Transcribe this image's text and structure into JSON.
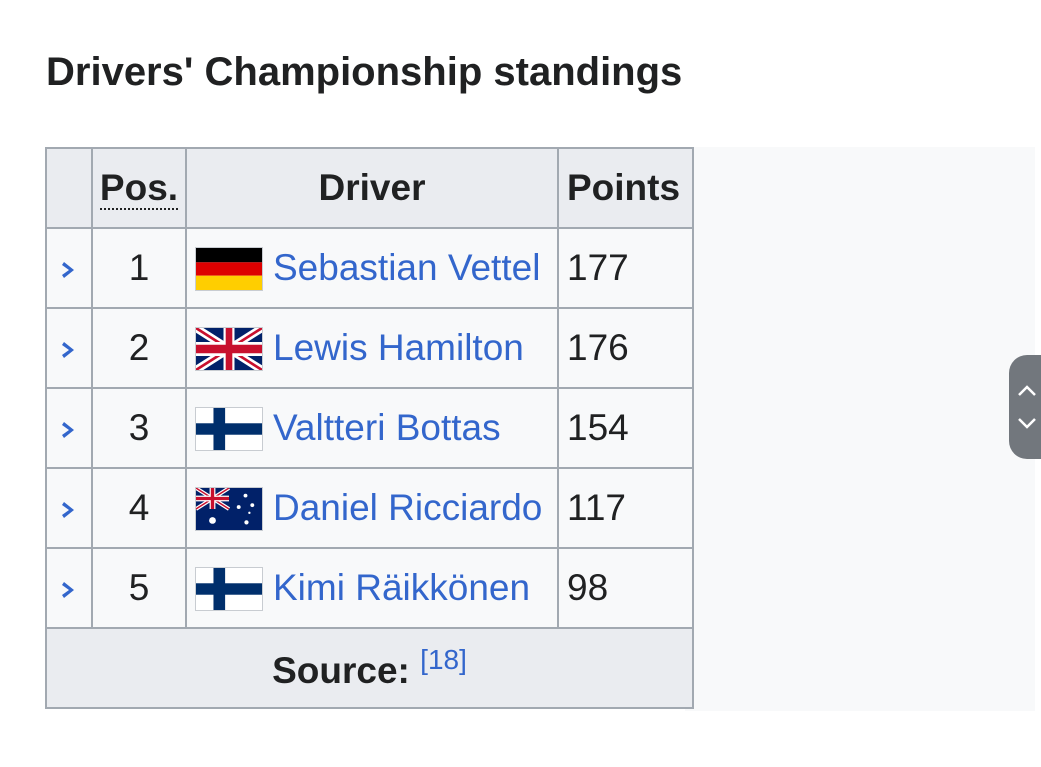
{
  "page": {
    "title": "Drivers' Championship standings"
  },
  "table": {
    "headers": {
      "pos": "Pos.",
      "driver": "Driver",
      "points": "Points"
    },
    "rows": [
      {
        "pos": "1",
        "driver": "Sebastian Vettel",
        "points": "177",
        "flag": "germany-flag-icon"
      },
      {
        "pos": "2",
        "driver": "Lewis Hamilton",
        "points": "176",
        "flag": "united-kingdom-flag-icon"
      },
      {
        "pos": "3",
        "driver": "Valtteri Bottas",
        "points": "154",
        "flag": "finland-flag-icon"
      },
      {
        "pos": "4",
        "driver": "Daniel Ricciardo",
        "points": "117",
        "flag": "australia-flag-icon"
      },
      {
        "pos": "5",
        "driver": "Kimi Räikkönen",
        "points": "98",
        "flag": "finland-flag-icon"
      }
    ],
    "source_label": "Source:",
    "source_ref": "[18]"
  },
  "colors": {
    "link": "#3366cc",
    "border": "#a2a9b1",
    "header_bg": "#eaecf0",
    "expand_icon": "#3366cc"
  }
}
